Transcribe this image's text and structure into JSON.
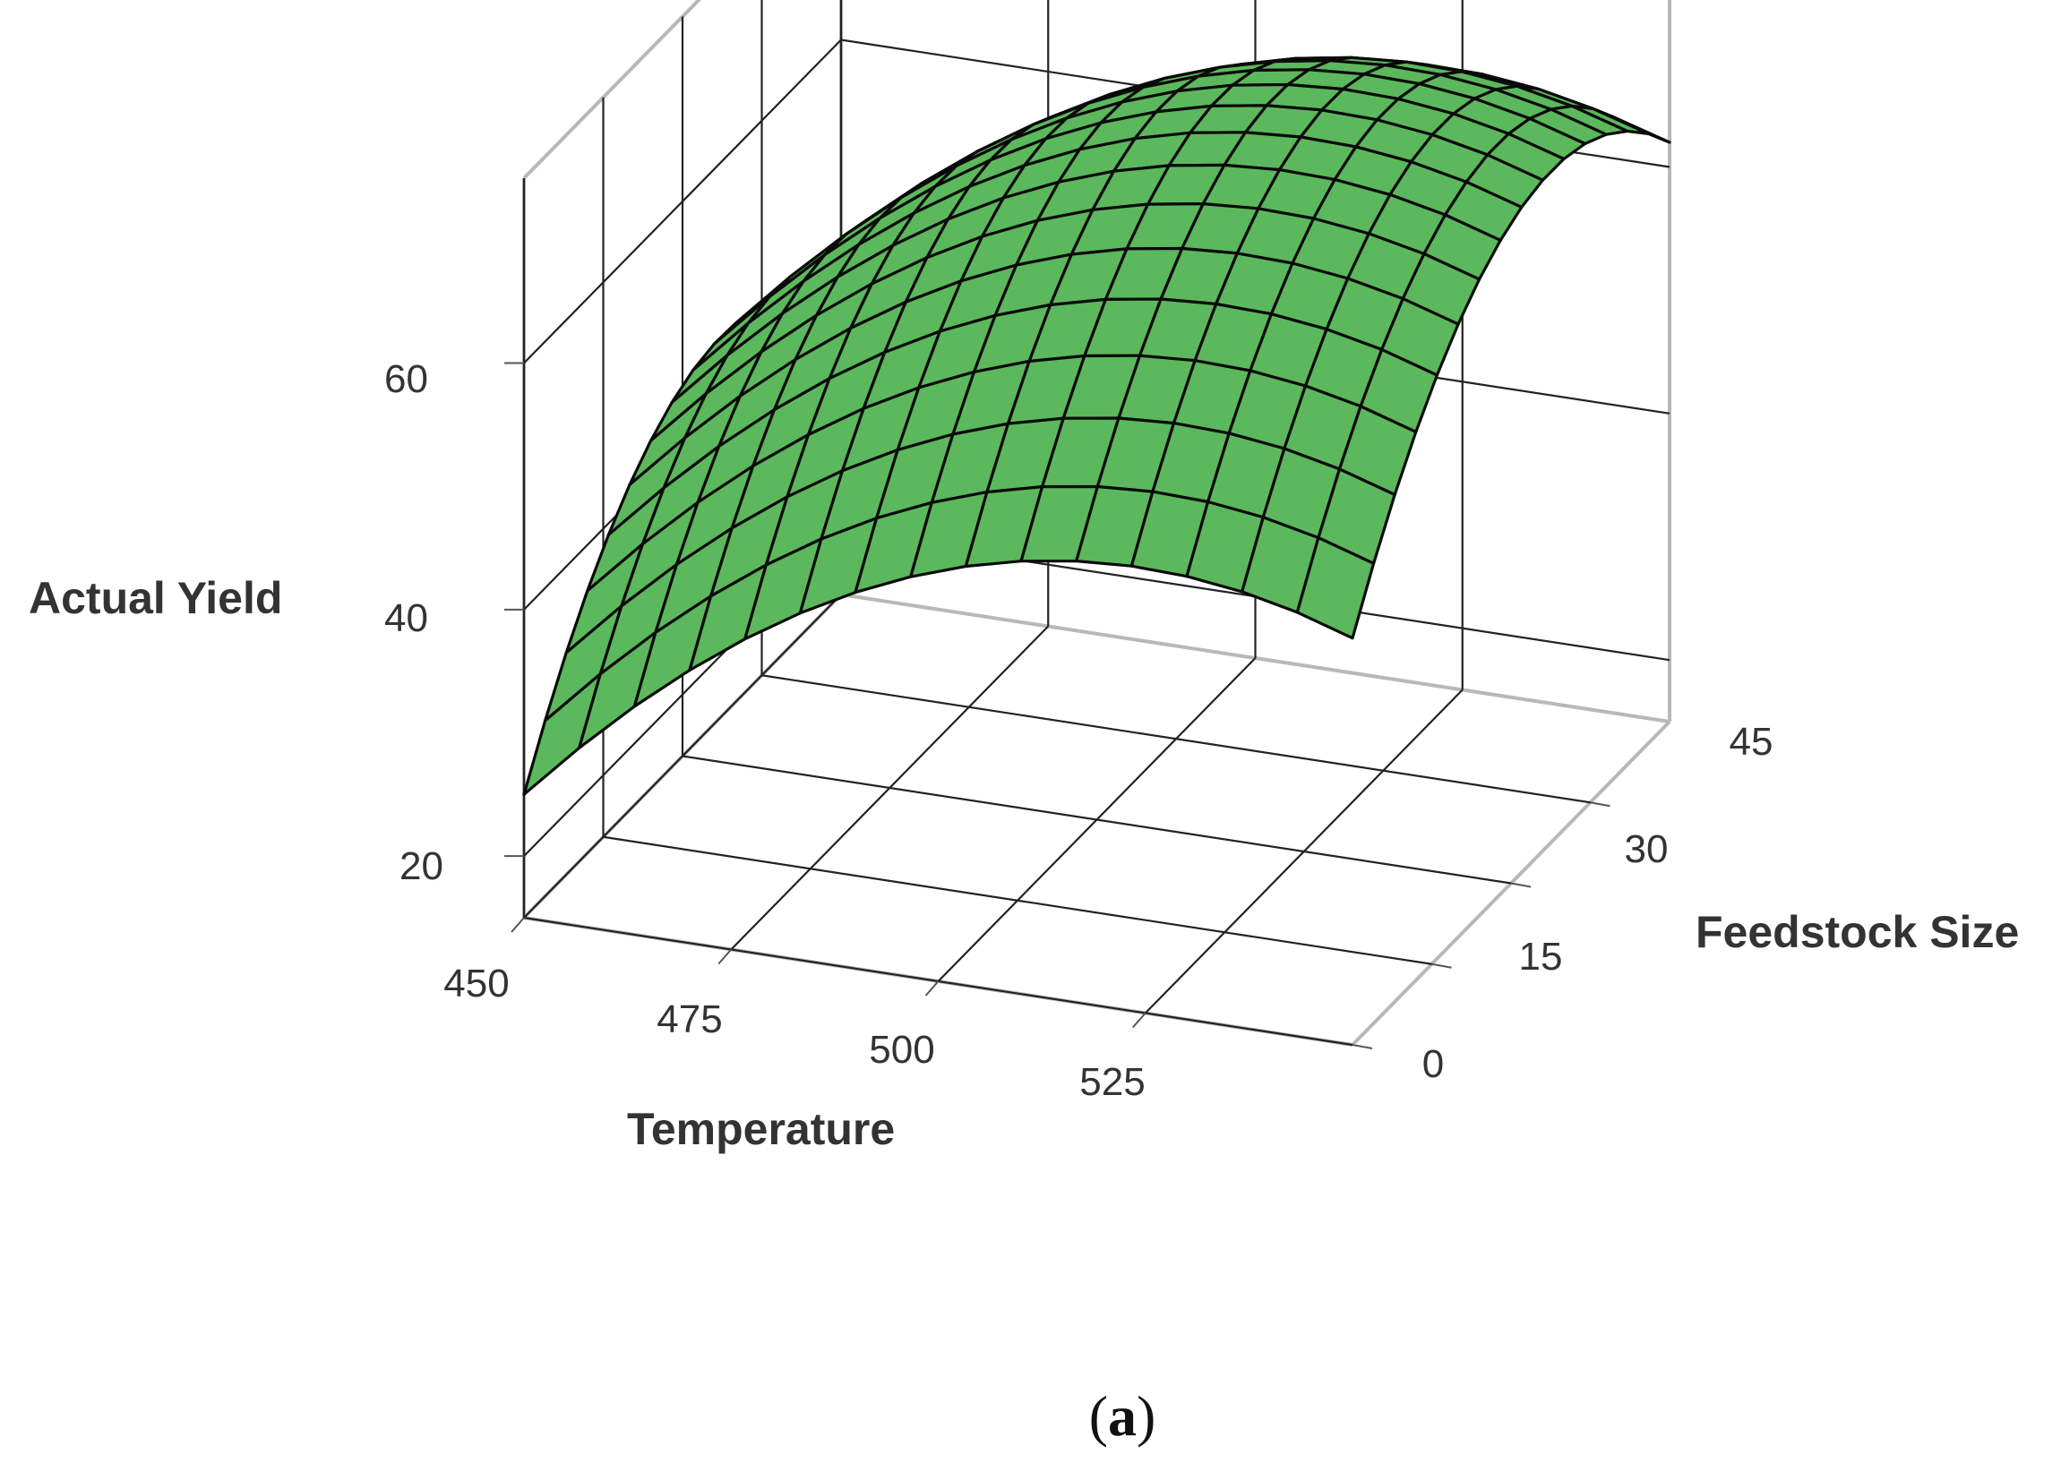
{
  "chart_data": {
    "type": "surface",
    "title": "",
    "xlabel": "Temperature",
    "ylabel": "Feedstock Size",
    "zlabel": "Actual Yield",
    "xlim": [
      450,
      550
    ],
    "ylim": [
      0,
      60
    ],
    "zlim": [
      15,
      75
    ],
    "x_ticks": [
      "450",
      "475",
      "500",
      "525"
    ],
    "y_ticks": [
      "0",
      "15",
      "30",
      "45"
    ],
    "z_ticks": [
      "20",
      "40",
      "60"
    ],
    "surface": {
      "color": "#5cb85c",
      "x_range": [
        450,
        550
      ],
      "y_range": [
        0,
        60
      ],
      "z_at_corners": {
        "x450_y0": 25,
        "x550_y0": 48,
        "x450_y60": 38,
        "x550_y60": 62
      },
      "z_peak": 66,
      "peak_at": {
        "x": 520,
        "y": 58
      },
      "grid_divisions": 15
    },
    "grid": true
  },
  "caption": {
    "open": "(",
    "label": "a",
    "close": ")"
  }
}
